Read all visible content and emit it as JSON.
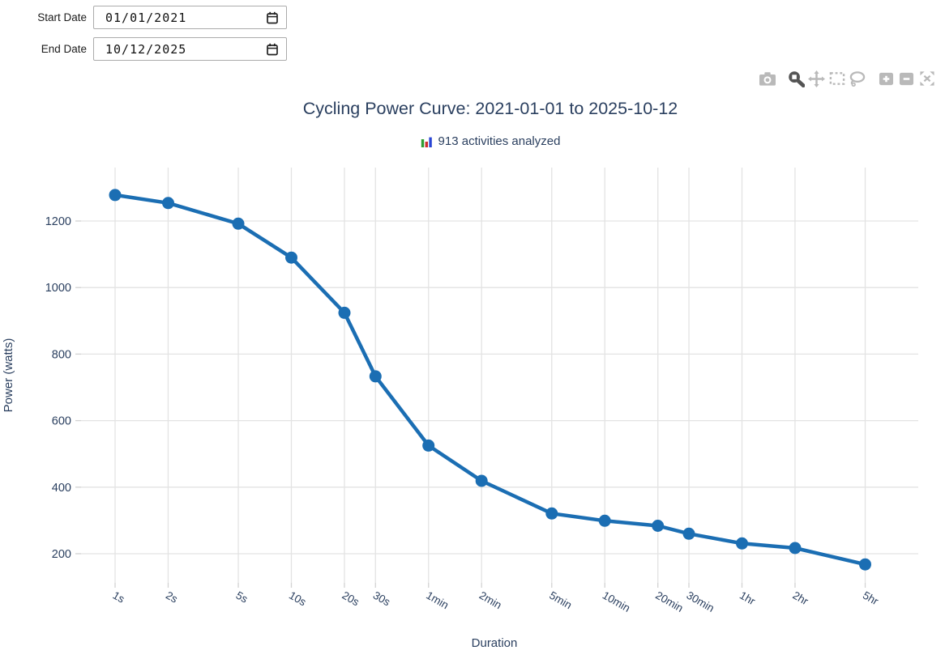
{
  "controls": {
    "start_date": {
      "label": "Start Date",
      "value": "01/01/2021"
    },
    "end_date": {
      "label": "End Date",
      "value": "10/12/2025"
    }
  },
  "modebar": {
    "icons": [
      "camera-icon",
      "zoom-icon",
      "pan-icon",
      "box-select-icon",
      "lasso-select-icon",
      "zoom-in-icon",
      "zoom-out-icon",
      "autoscale-icon"
    ],
    "active_icon": "zoom-icon"
  },
  "chart_data": {
    "type": "line",
    "title": "Cycling Power Curve: 2021-01-01 to 2025-10-12",
    "subtitle": "913 activities analyzed",
    "subtitle_icon": "bar-chart-icon",
    "xlabel": "Duration",
    "ylabel": "Power (watts)",
    "x_axis_type": "log",
    "grid": true,
    "legend": "none",
    "tick_angle_deg": 30,
    "categories": [
      "1s",
      "2s",
      "5s",
      "10s",
      "20s",
      "30s",
      "1min",
      "2min",
      "5min",
      "10min",
      "20min",
      "30min",
      "1hr",
      "2hr",
      "5hr"
    ],
    "x_seconds": [
      1,
      2,
      5,
      10,
      20,
      30,
      60,
      120,
      300,
      600,
      1200,
      1800,
      3600,
      7200,
      18000
    ],
    "values": [
      1278,
      1254,
      1192,
      1090,
      924,
      733,
      525,
      419,
      321,
      299,
      284,
      260,
      231,
      217,
      168
    ],
    "yticks": [
      200,
      400,
      600,
      800,
      1000,
      1200
    ],
    "ylim": [
      110,
      1380
    ],
    "line_color": "#1b6eb3",
    "text_color": "#2a3f5f",
    "grid_color": "#e3e3e3",
    "tick_color": "#d2d2d2"
  }
}
